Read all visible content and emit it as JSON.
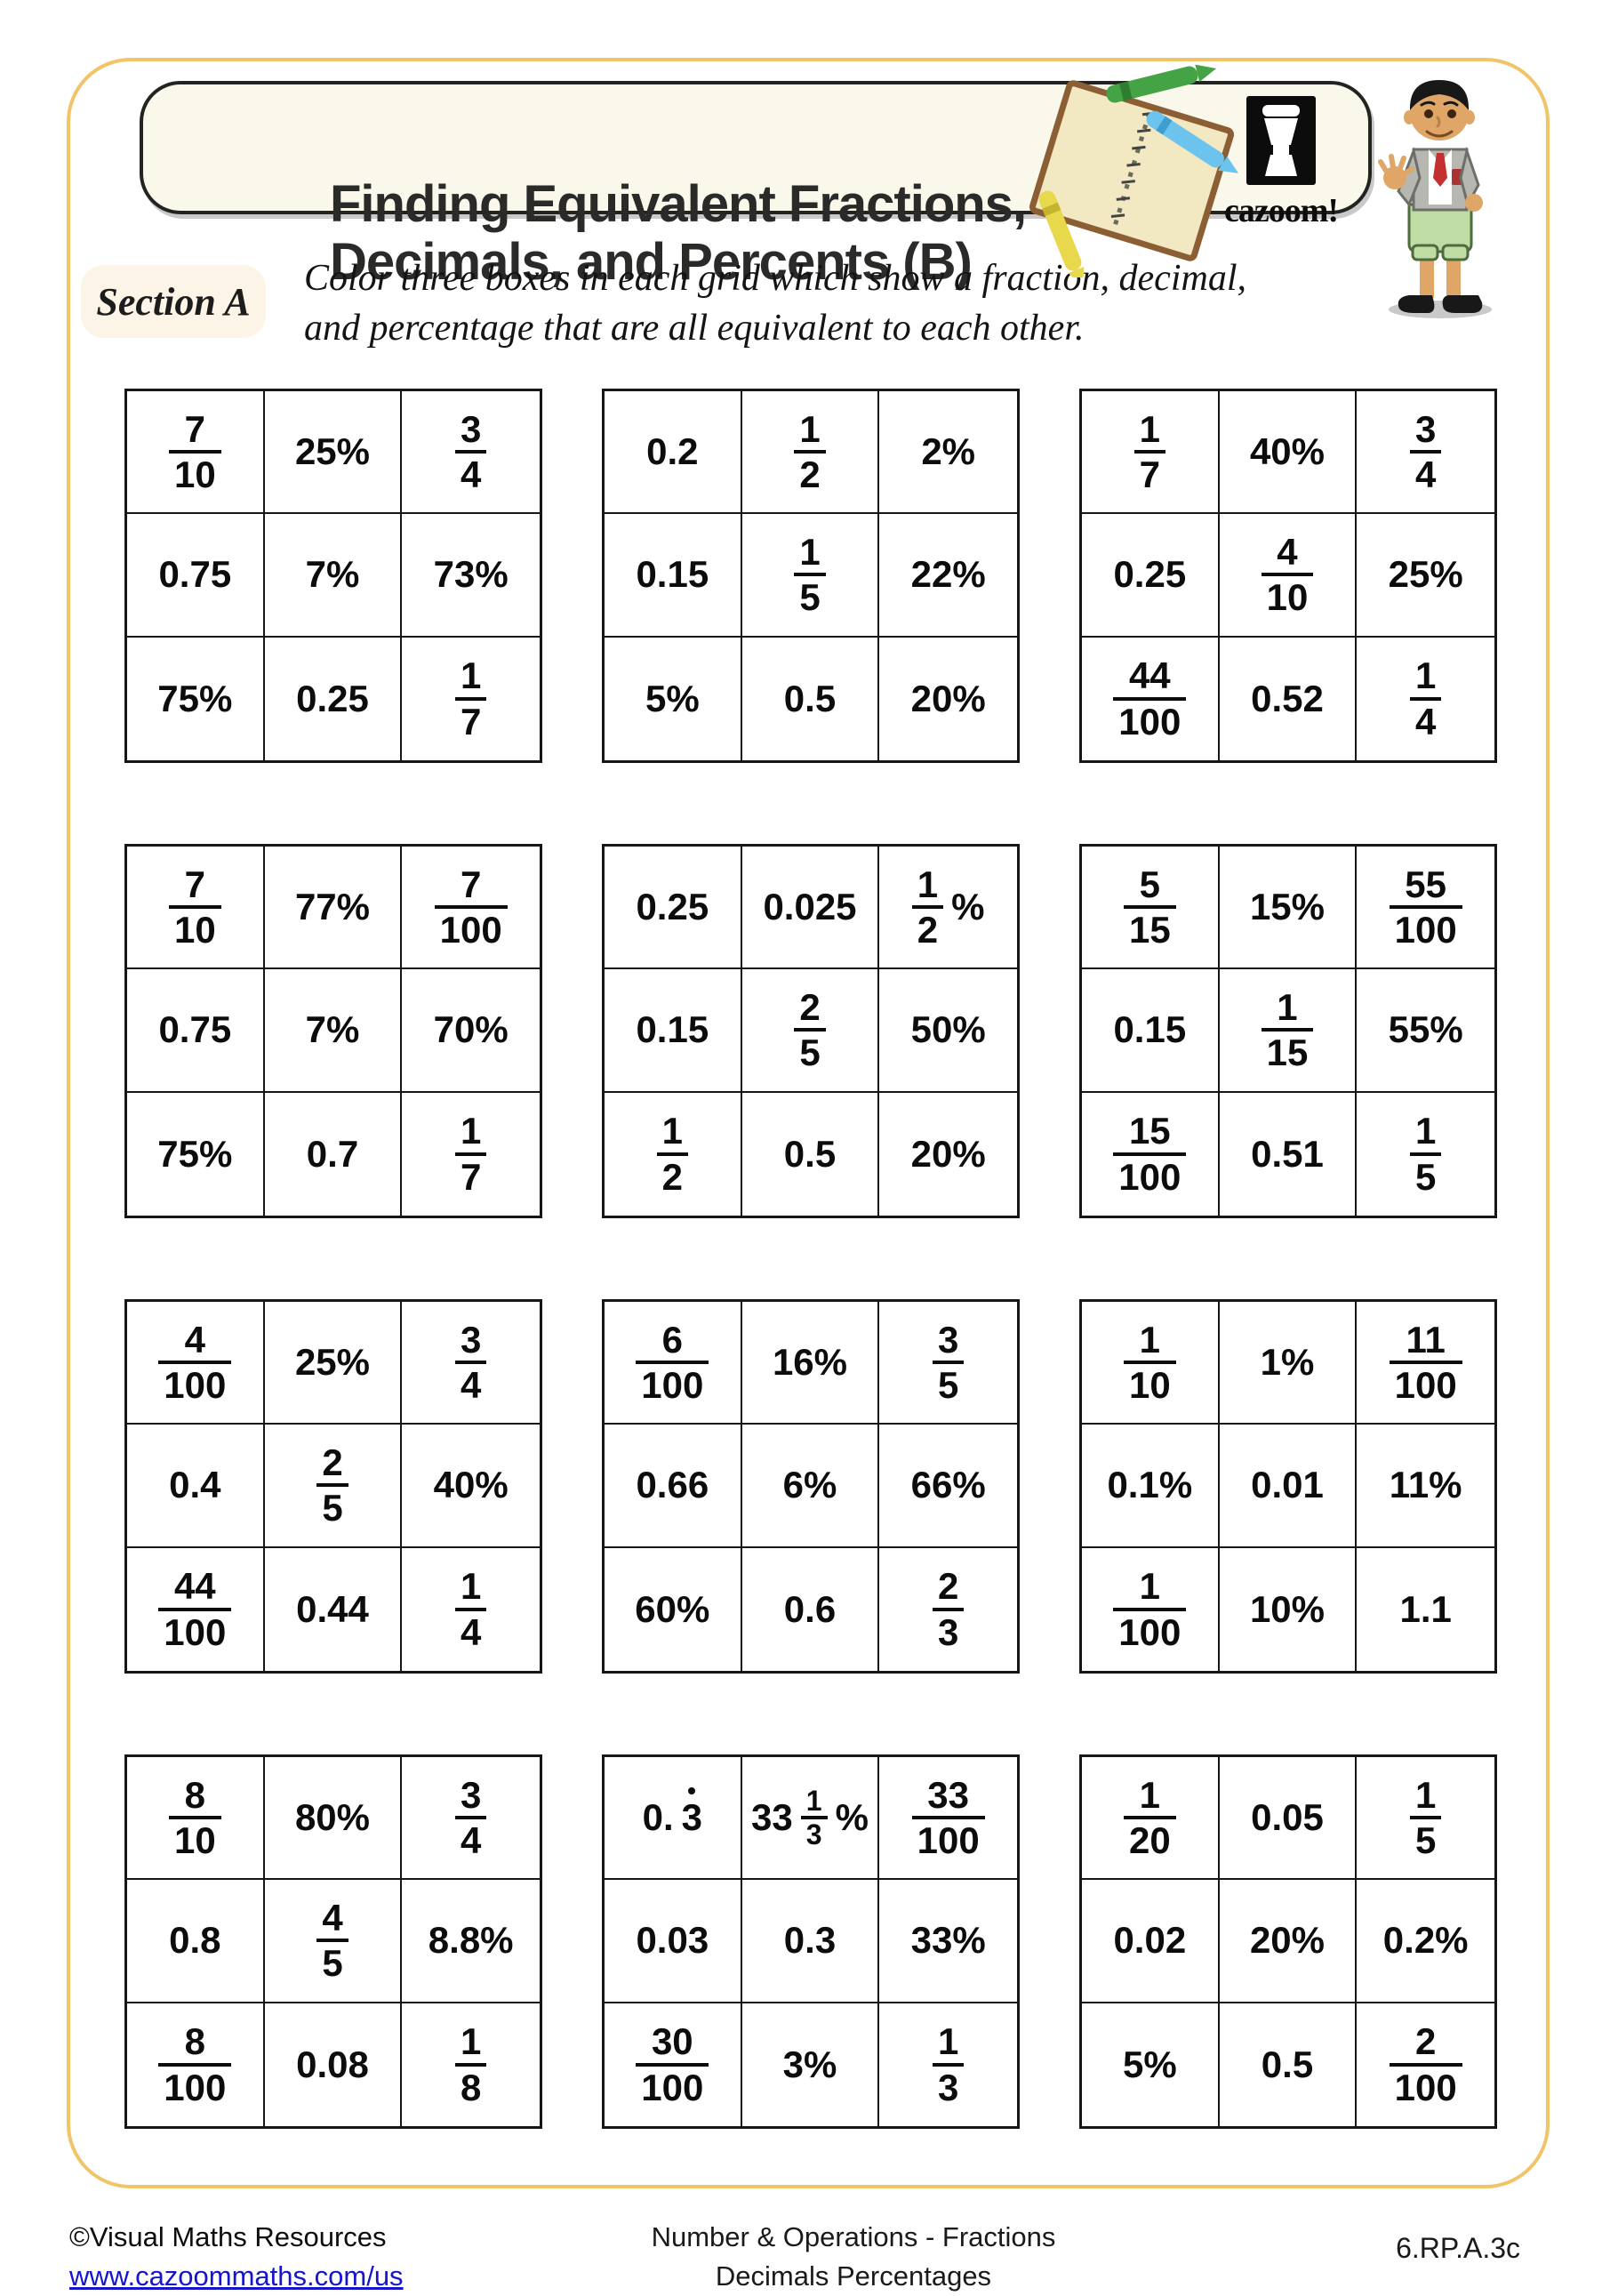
{
  "header": {
    "title_line1": "Finding Equivalent Fractions,",
    "title_line2": "Decimals, and Percents (B)",
    "logo_text": "cazoom!"
  },
  "section": {
    "label": "Section A",
    "instructions_line1": "Color three boxes in each grid which show a fraction, decimal,",
    "instructions_line2": "and percentage that are all equivalent to each other."
  },
  "colors": {
    "page_frame": "#F2C468",
    "header_bg": "#FAF8EB",
    "section_bg": "#FBF4E7",
    "link_blue": "#1515CC",
    "text_black": "#0c0c0c"
  },
  "icons": {
    "notebook": "notebook-with-crayons-illustration",
    "logo": "cazoom-drum-logo",
    "mascot": "boy-waving-cartoon"
  },
  "grids": [
    {
      "cells": [
        [
          {
            "t": "frac",
            "n": "7",
            "d": "10"
          },
          {
            "t": "text",
            "v": "25%"
          },
          {
            "t": "frac",
            "n": "3",
            "d": "4"
          }
        ],
        [
          {
            "t": "text",
            "v": "0.75"
          },
          {
            "t": "text",
            "v": "7%"
          },
          {
            "t": "text",
            "v": "73%"
          }
        ],
        [
          {
            "t": "text",
            "v": "75%"
          },
          {
            "t": "text",
            "v": "0.25"
          },
          {
            "t": "frac",
            "n": "1",
            "d": "7"
          }
        ]
      ]
    },
    {
      "cells": [
        [
          {
            "t": "text",
            "v": "0.2"
          },
          {
            "t": "frac",
            "n": "1",
            "d": "2"
          },
          {
            "t": "text",
            "v": "2%"
          }
        ],
        [
          {
            "t": "text",
            "v": "0.15"
          },
          {
            "t": "frac",
            "n": "1",
            "d": "5"
          },
          {
            "t": "text",
            "v": "22%"
          }
        ],
        [
          {
            "t": "text",
            "v": "5%"
          },
          {
            "t": "text",
            "v": "0.5"
          },
          {
            "t": "text",
            "v": "20%"
          }
        ]
      ]
    },
    {
      "cells": [
        [
          {
            "t": "frac",
            "n": "1",
            "d": "7"
          },
          {
            "t": "text",
            "v": "40%"
          },
          {
            "t": "frac",
            "n": "3",
            "d": "4"
          }
        ],
        [
          {
            "t": "text",
            "v": "0.25"
          },
          {
            "t": "frac",
            "n": "4",
            "d": "10"
          },
          {
            "t": "text",
            "v": "25%"
          }
        ],
        [
          {
            "t": "frac",
            "n": "44",
            "d": "100"
          },
          {
            "t": "text",
            "v": "0.52"
          },
          {
            "t": "frac",
            "n": "1",
            "d": "4"
          }
        ]
      ]
    },
    {
      "cells": [
        [
          {
            "t": "frac",
            "n": "7",
            "d": "10"
          },
          {
            "t": "text",
            "v": "77%"
          },
          {
            "t": "frac",
            "n": "7",
            "d": "100"
          }
        ],
        [
          {
            "t": "text",
            "v": "0.75"
          },
          {
            "t": "text",
            "v": "7%"
          },
          {
            "t": "text",
            "v": "70%"
          }
        ],
        [
          {
            "t": "text",
            "v": "75%"
          },
          {
            "t": "text",
            "v": "0.7"
          },
          {
            "t": "frac",
            "n": "1",
            "d": "7"
          }
        ]
      ]
    },
    {
      "cells": [
        [
          {
            "t": "text",
            "v": "0.25"
          },
          {
            "t": "text",
            "v": "0.025"
          },
          {
            "t": "frac",
            "n": "1",
            "d": "2",
            "sfx": "%"
          }
        ],
        [
          {
            "t": "text",
            "v": "0.15"
          },
          {
            "t": "frac",
            "n": "2",
            "d": "5"
          },
          {
            "t": "text",
            "v": "50%"
          }
        ],
        [
          {
            "t": "frac",
            "n": "1",
            "d": "2"
          },
          {
            "t": "text",
            "v": "0.5"
          },
          {
            "t": "text",
            "v": "20%"
          }
        ]
      ]
    },
    {
      "cells": [
        [
          {
            "t": "frac",
            "n": "5",
            "d": "15"
          },
          {
            "t": "text",
            "v": "15%"
          },
          {
            "t": "frac",
            "n": "55",
            "d": "100"
          }
        ],
        [
          {
            "t": "text",
            "v": "0.15"
          },
          {
            "t": "frac",
            "n": "1",
            "d": "15"
          },
          {
            "t": "text",
            "v": "55%"
          }
        ],
        [
          {
            "t": "frac",
            "n": "15",
            "d": "100"
          },
          {
            "t": "text",
            "v": "0.51"
          },
          {
            "t": "frac",
            "n": "1",
            "d": "5"
          }
        ]
      ]
    },
    {
      "cells": [
        [
          {
            "t": "frac",
            "n": "4",
            "d": "100"
          },
          {
            "t": "text",
            "v": "25%"
          },
          {
            "t": "frac",
            "n": "3",
            "d": "4"
          }
        ],
        [
          {
            "t": "text",
            "v": "0.4"
          },
          {
            "t": "frac",
            "n": "2",
            "d": "5"
          },
          {
            "t": "text",
            "v": "40%"
          }
        ],
        [
          {
            "t": "frac",
            "n": "44",
            "d": "100"
          },
          {
            "t": "text",
            "v": "0.44"
          },
          {
            "t": "frac",
            "n": "1",
            "d": "4"
          }
        ]
      ]
    },
    {
      "cells": [
        [
          {
            "t": "frac",
            "n": "6",
            "d": "100"
          },
          {
            "t": "text",
            "v": "16%"
          },
          {
            "t": "frac",
            "n": "3",
            "d": "5"
          }
        ],
        [
          {
            "t": "text",
            "v": "0.66"
          },
          {
            "t": "text",
            "v": "6%"
          },
          {
            "t": "text",
            "v": "66%"
          }
        ],
        [
          {
            "t": "text",
            "v": "60%"
          },
          {
            "t": "text",
            "v": "0.6"
          },
          {
            "t": "frac",
            "n": "2",
            "d": "3"
          }
        ]
      ]
    },
    {
      "cells": [
        [
          {
            "t": "frac",
            "n": "1",
            "d": "10"
          },
          {
            "t": "text",
            "v": "1%"
          },
          {
            "t": "frac",
            "n": "11",
            "d": "100"
          }
        ],
        [
          {
            "t": "text",
            "v": "0.1%"
          },
          {
            "t": "text",
            "v": "0.01"
          },
          {
            "t": "text",
            "v": "11%"
          }
        ],
        [
          {
            "t": "frac",
            "n": "1",
            "d": "100"
          },
          {
            "t": "text",
            "v": "10%"
          },
          {
            "t": "text",
            "v": "1.1"
          }
        ]
      ]
    },
    {
      "cells": [
        [
          {
            "t": "frac",
            "n": "8",
            "d": "10"
          },
          {
            "t": "text",
            "v": "80%"
          },
          {
            "t": "frac",
            "n": "3",
            "d": "4"
          }
        ],
        [
          {
            "t": "text",
            "v": "0.8"
          },
          {
            "t": "frac",
            "n": "4",
            "d": "5"
          },
          {
            "t": "text",
            "v": "8.8%"
          }
        ],
        [
          {
            "t": "frac",
            "n": "8",
            "d": "100"
          },
          {
            "t": "text",
            "v": "0.08"
          },
          {
            "t": "frac",
            "n": "1",
            "d": "8"
          }
        ]
      ]
    },
    {
      "cells": [
        [
          {
            "t": "recdec",
            "pre": "0.",
            "rec": "3"
          },
          {
            "t": "frac",
            "w": "33",
            "n": "1",
            "d": "3",
            "sfx": "%"
          },
          {
            "t": "frac",
            "n": "33",
            "d": "100"
          }
        ],
        [
          {
            "t": "text",
            "v": "0.03"
          },
          {
            "t": "text",
            "v": "0.3"
          },
          {
            "t": "text",
            "v": "33%"
          }
        ],
        [
          {
            "t": "frac",
            "n": "30",
            "d": "100"
          },
          {
            "t": "text",
            "v": "3%"
          },
          {
            "t": "frac",
            "n": "1",
            "d": "3"
          }
        ]
      ]
    },
    {
      "cells": [
        [
          {
            "t": "frac",
            "n": "1",
            "d": "20"
          },
          {
            "t": "text",
            "v": "0.05"
          },
          {
            "t": "frac",
            "n": "1",
            "d": "5"
          }
        ],
        [
          {
            "t": "text",
            "v": "0.02"
          },
          {
            "t": "text",
            "v": "20%"
          },
          {
            "t": "text",
            "v": "0.2%"
          }
        ],
        [
          {
            "t": "text",
            "v": "5%"
          },
          {
            "t": "text",
            "v": "0.5"
          },
          {
            "t": "frac",
            "n": "2",
            "d": "100"
          }
        ]
      ]
    }
  ],
  "footer": {
    "copyright": "©Visual Maths Resources",
    "link": "www.cazoommaths.com/us",
    "center_line1": "Number & Operations - Fractions",
    "center_line2": "Decimals Percentages",
    "standard": "6.RP.A.3c"
  }
}
